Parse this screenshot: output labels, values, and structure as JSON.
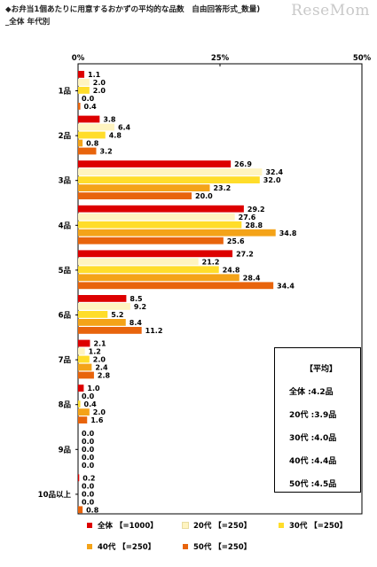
{
  "title_line1": "◆お弁当1個あたりに用意するおかずの平均的な品数　自由回答形式_数量)",
  "title_line2": "_全体 年代別",
  "logo": "ReseMom",
  "chart_data": {
    "type": "bar",
    "orientation": "horizontal",
    "xlim": [
      0,
      50
    ],
    "x_ticks": [
      "0%",
      "25%",
      "50%"
    ],
    "categories": [
      "1品",
      "2品",
      "3品",
      "4品",
      "5品",
      "6品",
      "7品",
      "8品",
      "9品",
      "10品以上"
    ],
    "series": [
      {
        "name": "全体 【=1000】",
        "color": "#dd0000",
        "values": [
          1.1,
          3.8,
          26.9,
          29.2,
          27.2,
          8.5,
          2.1,
          1.0,
          0.0,
          0.2
        ]
      },
      {
        "name": "20代 【=250】",
        "color": "#fff4c0",
        "values": [
          2.0,
          6.4,
          32.4,
          27.6,
          21.2,
          9.2,
          1.2,
          0.0,
          0.0,
          0.0
        ]
      },
      {
        "name": "30代 【=250】",
        "color": "#ffdd2a",
        "values": [
          2.0,
          4.8,
          32.0,
          28.8,
          24.8,
          5.2,
          2.0,
          0.4,
          0.0,
          0.0
        ]
      },
      {
        "name": "40代 【=250】",
        "color": "#f4a318",
        "values": [
          0.0,
          0.8,
          23.2,
          34.8,
          28.4,
          8.4,
          2.4,
          2.0,
          0.0,
          0.0
        ]
      },
      {
        "name": "50代 【=250】",
        "color": "#e8640c",
        "values": [
          0.4,
          3.2,
          20.0,
          25.6,
          34.4,
          11.2,
          2.8,
          1.6,
          0.0,
          0.8
        ]
      }
    ],
    "value_labels": [
      [
        "1.1",
        "3.8",
        "26.9",
        "29.2",
        "27.2",
        "8.5",
        "2.1",
        "1.0",
        "0.0",
        "0.2"
      ],
      [
        "2.0",
        "6.4",
        "32.4",
        "27.6",
        "21.2",
        "9.2",
        "1.2",
        "0.0",
        "0.0",
        "0.0"
      ],
      [
        "2.0",
        "4.8",
        "32.0",
        "28.8",
        "24.8",
        "5.2",
        "2.0",
        "0.4",
        "0.0",
        "0.0"
      ],
      [
        "0.0",
        "0.8",
        "23.2",
        "34.8",
        "28.4",
        "8.4",
        "2.4",
        "2.0",
        "0.0",
        "0.0"
      ],
      [
        "0.4",
        "3.2",
        "20.0",
        "25.6",
        "34.4",
        "11.2",
        "2.8",
        "1.6",
        "0.0",
        "0.8"
      ]
    ],
    "legend_position": "bottom",
    "grid": false
  },
  "average_box": {
    "title": "【平均】",
    "rows": [
      "全体 :4.2品",
      "20代 :3.9品",
      "30代 :4.0品",
      "40代 :4.4品",
      "50代 :4.5品"
    ]
  }
}
